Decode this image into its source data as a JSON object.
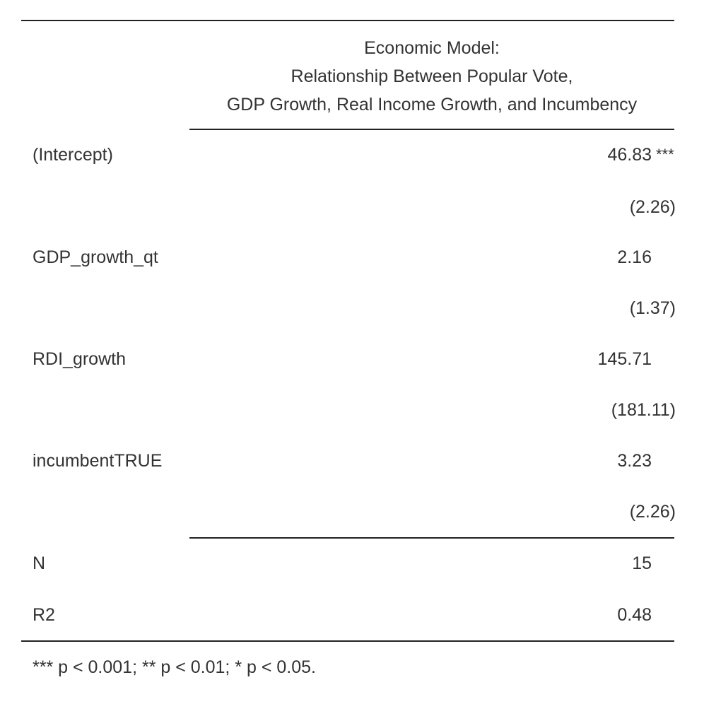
{
  "header": {
    "line1": "Economic Model:",
    "line2": "Relationship Between Popular Vote,",
    "line3": "GDP Growth, Real Income Growth, and Incumbency"
  },
  "rows": [
    {
      "label": "(Intercept)",
      "estimate": "46.83",
      "stars": "***",
      "se": "(2.26)"
    },
    {
      "label": "GDP_growth_qt",
      "estimate": "2.16",
      "stars": "",
      "se": "(1.37)"
    },
    {
      "label": "RDI_growth",
      "estimate": "145.71",
      "stars": "",
      "se": "(181.11)"
    },
    {
      "label": "incumbentTRUE",
      "estimate": "3.23",
      "stars": "",
      "se": "(2.26)"
    }
  ],
  "stats": [
    {
      "label": "N",
      "value": "15"
    },
    {
      "label": "R2",
      "value": "0.48"
    }
  ],
  "footnote": "*** p < 0.001; ** p < 0.01; * p < 0.05."
}
